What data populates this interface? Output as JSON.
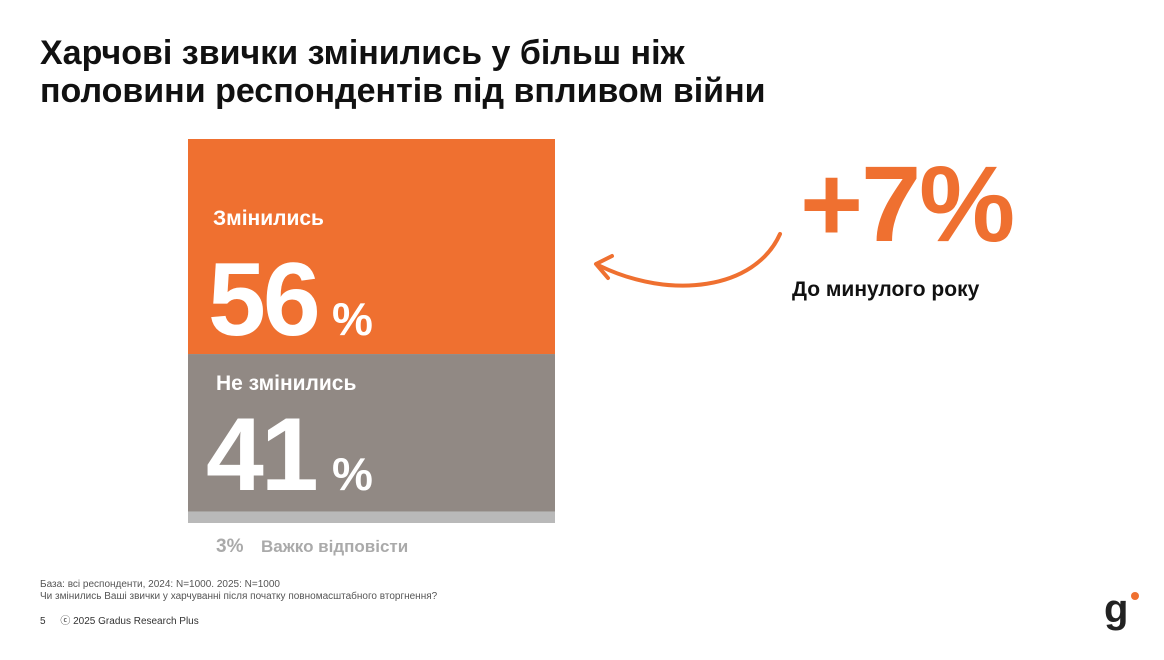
{
  "title": {
    "line1": "Харчові звички змінились у більш ніж",
    "line2": "половини респондентів під впливом війни"
  },
  "chart_data": {
    "type": "bar",
    "categories": [
      "Змінились",
      "Не змінились",
      "Важко відповісти"
    ],
    "values": [
      56,
      41,
      3
    ],
    "value_labels": [
      "56",
      "41",
      "3%"
    ],
    "percent_sign": "%",
    "ylim": [
      0,
      100
    ],
    "colors": [
      "#EF7030",
      "#918984",
      "#B9B9B9"
    ]
  },
  "callout": {
    "value": "+7%",
    "label": "До минулого року",
    "color": "#EF7030"
  },
  "footnote": {
    "base": "База: всі респонденти, 2024: N=1000. 2025: N=1000",
    "question": "Чи змінились Ваші звички у харчуванні після початку повномасштабного вторгнення?"
  },
  "footer": {
    "page": "5",
    "copyright": "ⓒ 2025 Gradus Research Plus"
  },
  "logo": {
    "letter": "g",
    "dot_color": "#EF7030"
  }
}
